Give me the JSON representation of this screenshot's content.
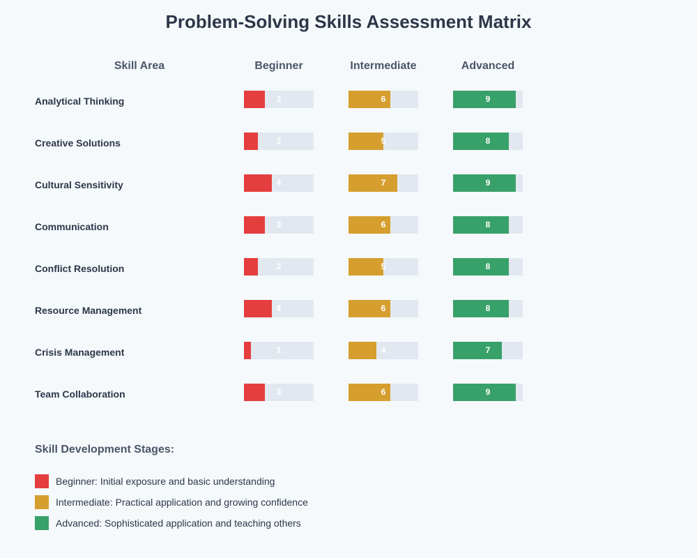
{
  "title": "Problem-Solving Skills Assessment Matrix",
  "headers": {
    "skill_area": "Skill Area",
    "beginner": "Beginner",
    "intermediate": "Intermediate",
    "advanced": "Advanced"
  },
  "colors": {
    "beginner": "#e53e3e",
    "intermediate": "#d69e2e",
    "advanced": "#38a169",
    "track": "#e2e8f0",
    "background": "#f5f9fc"
  },
  "rows": [
    {
      "skill": "Analytical Thinking",
      "beginner": "3",
      "intermediate": "6",
      "advanced": "9"
    },
    {
      "skill": "Creative Solutions",
      "beginner": "2",
      "intermediate": "5",
      "advanced": "8"
    },
    {
      "skill": "Cultural Sensitivity",
      "beginner": "4",
      "intermediate": "7",
      "advanced": "9"
    },
    {
      "skill": "Communication",
      "beginner": "3",
      "intermediate": "6",
      "advanced": "8"
    },
    {
      "skill": "Conflict Resolution",
      "beginner": "2",
      "intermediate": "5",
      "advanced": "8"
    },
    {
      "skill": "Resource Management",
      "beginner": "4",
      "intermediate": "6",
      "advanced": "8"
    },
    {
      "skill": "Crisis Management",
      "beginner": "1",
      "intermediate": "4",
      "advanced": "7"
    },
    {
      "skill": "Team Collaboration",
      "beginner": "3",
      "intermediate": "6",
      "advanced": "9"
    }
  ],
  "legend": {
    "title": "Skill Development Stages:",
    "items": [
      {
        "label": "Beginner: Initial exposure and basic understanding",
        "color": "#e53e3e"
      },
      {
        "label": "Intermediate: Practical application and growing confidence",
        "color": "#d69e2e"
      },
      {
        "label": "Advanced: Sophisticated application and teaching others",
        "color": "#38a169"
      }
    ]
  },
  "chart_data": {
    "type": "bar",
    "title": "Problem-Solving Skills Assessment Matrix",
    "categories": [
      "Analytical Thinking",
      "Creative Solutions",
      "Cultural Sensitivity",
      "Communication",
      "Conflict Resolution",
      "Resource Management",
      "Crisis Management",
      "Team Collaboration"
    ],
    "series": [
      {
        "name": "Beginner",
        "color": "#e53e3e",
        "values": [
          3,
          2,
          4,
          3,
          2,
          4,
          1,
          3
        ]
      },
      {
        "name": "Intermediate",
        "color": "#d69e2e",
        "values": [
          6,
          5,
          7,
          6,
          5,
          6,
          4,
          6
        ]
      },
      {
        "name": "Advanced",
        "color": "#38a169",
        "values": [
          9,
          8,
          9,
          8,
          8,
          8,
          7,
          9
        ]
      }
    ],
    "xlabel": "",
    "ylabel": "Skill Area",
    "ylim": [
      0,
      10
    ],
    "orientation": "horizontal",
    "grid": false,
    "legend_position": "bottom-left",
    "legend": [
      "Beginner: Initial exposure and basic understanding",
      "Intermediate: Practical application and growing confidence",
      "Advanced: Sophisticated application and teaching others"
    ]
  }
}
